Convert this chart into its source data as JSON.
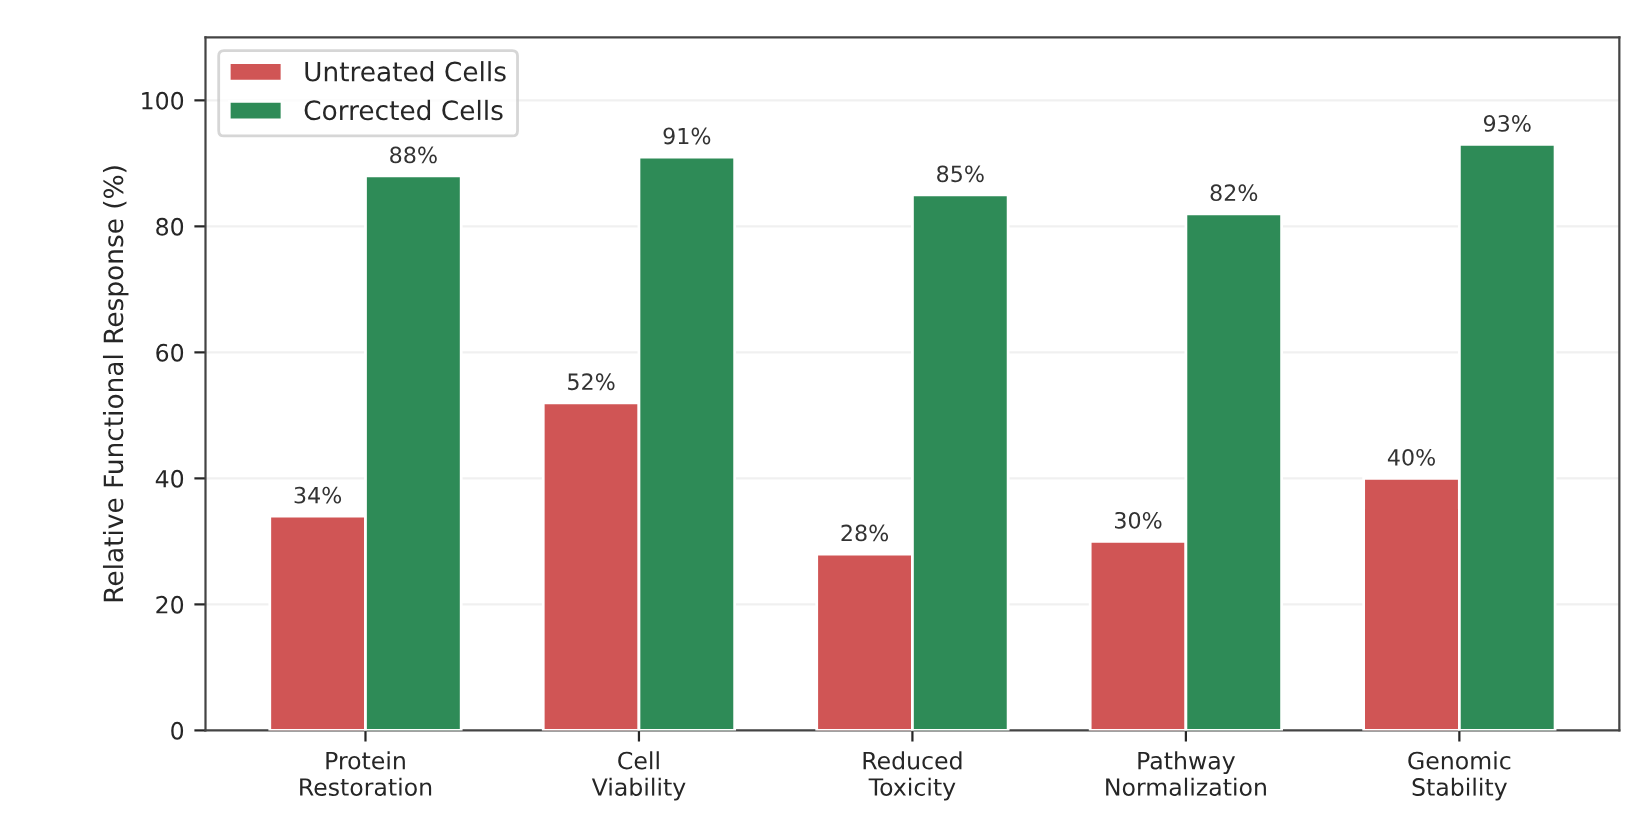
{
  "chart_data": {
    "type": "bar",
    "ylabel": "Relative Functional Response (%)",
    "categories": [
      "Protein\nRestoration",
      "Cell\nViability",
      "Reduced\nToxicity",
      "Pathway\nNormalization",
      "Genomic\nStability"
    ],
    "series": [
      {
        "name": "Untreated Cells",
        "color": "#d05555",
        "values": [
          34,
          52,
          28,
          30,
          40
        ],
        "value_labels": [
          "34%",
          "52%",
          "28%",
          "30%",
          "40%"
        ]
      },
      {
        "name": "Corrected Cells",
        "color": "#2e8b57",
        "values": [
          88,
          91,
          85,
          82,
          93
        ],
        "value_labels": [
          "88%",
          "91%",
          "85%",
          "82%",
          "93%"
        ]
      }
    ],
    "ylim": [
      0,
      110
    ],
    "yticks": [
      0,
      20,
      40,
      60,
      80,
      100
    ],
    "grid": "y",
    "legend": "top left"
  }
}
